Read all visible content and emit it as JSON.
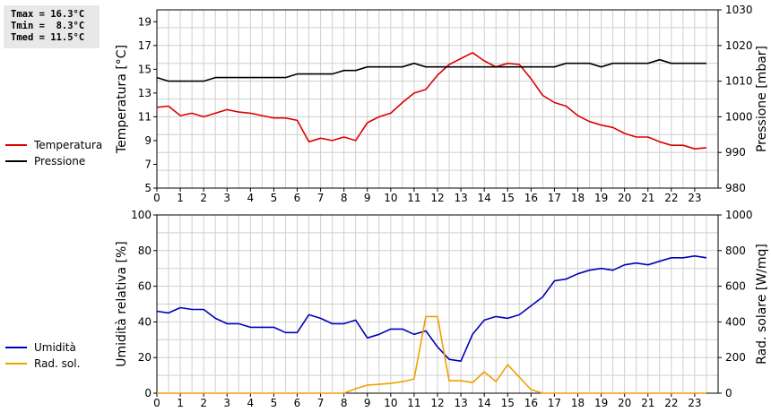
{
  "stats": [
    "Tmax = 16.3°C",
    "Tmin =  8.3°C",
    "Tmed = 11.5°C"
  ],
  "colors": {
    "temperature": "#dd0000",
    "pressure": "#000000",
    "humidity": "#0000bb",
    "radiation": "#f0a000",
    "grid": "#cfcfcf"
  },
  "chart_data": [
    {
      "type": "line",
      "ylabel": "Temperatura [°C]",
      "y2label": "Pressione [mbar]",
      "xlim": [
        0,
        24
      ],
      "xticks": [
        0,
        1,
        2,
        3,
        4,
        5,
        6,
        7,
        8,
        9,
        10,
        11,
        12,
        13,
        14,
        15,
        16,
        17,
        18,
        19,
        20,
        21,
        22,
        23
      ],
      "ylim": [
        5,
        20
      ],
      "yticks": [
        5,
        7,
        9,
        11,
        13,
        15,
        17,
        19
      ],
      "y2lim": [
        980,
        1030
      ],
      "y2ticks": [
        980,
        990,
        1000,
        1010,
        1020,
        1030
      ],
      "grid": true,
      "legend": "left",
      "series": [
        {
          "name": "Temperatura",
          "axis": "left",
          "color": "#dd0000",
          "x": [
            0,
            0.5,
            1,
            1.5,
            2,
            2.5,
            3,
            3.5,
            4,
            4.5,
            5,
            5.5,
            6,
            6.5,
            7,
            7.5,
            8,
            8.5,
            9,
            9.5,
            10,
            10.5,
            11,
            11.5,
            12,
            12.5,
            13,
            13.5,
            14,
            14.5,
            15,
            15.5,
            16,
            16.5,
            17,
            17.5,
            18,
            18.5,
            19,
            19.5,
            20,
            20.5,
            21,
            21.5,
            22,
            22.5,
            23,
            23.5
          ],
          "values": [
            11.8,
            11.9,
            11.1,
            11.3,
            11.0,
            11.3,
            11.6,
            11.4,
            11.3,
            11.1,
            10.9,
            10.9,
            10.7,
            8.9,
            9.2,
            9.0,
            9.3,
            9.0,
            10.5,
            11.0,
            11.3,
            12.2,
            13.0,
            13.3,
            14.5,
            15.4,
            15.9,
            16.4,
            15.7,
            15.2,
            15.5,
            15.4,
            14.2,
            12.8,
            12.2,
            11.9,
            11.1,
            10.6,
            10.3,
            10.1,
            9.6,
            9.3,
            9.3,
            8.9,
            8.6,
            8.6,
            8.3,
            8.4
          ]
        },
        {
          "name": "Pressione",
          "axis": "right",
          "color": "#000000",
          "x": [
            0,
            0.5,
            1,
            1.5,
            2,
            2.5,
            3,
            3.5,
            4,
            4.5,
            5,
            5.5,
            6,
            6.5,
            7,
            7.5,
            8,
            8.5,
            9,
            9.5,
            10,
            10.5,
            11,
            11.5,
            12,
            12.5,
            13,
            13.5,
            14,
            14.5,
            15,
            15.5,
            16,
            16.5,
            17,
            17.5,
            18,
            18.5,
            19,
            19.5,
            20,
            20.5,
            21,
            21.5,
            22,
            22.5,
            23,
            23.5
          ],
          "values": [
            1011,
            1010,
            1010,
            1010,
            1010,
            1011,
            1011,
            1011,
            1011,
            1011,
            1011,
            1011,
            1012,
            1012,
            1012,
            1012,
            1013,
            1013,
            1014,
            1014,
            1014,
            1014,
            1015,
            1014,
            1014,
            1014,
            1014,
            1014,
            1014,
            1014,
            1014,
            1014,
            1014,
            1014,
            1014,
            1015,
            1015,
            1015,
            1014,
            1015,
            1015,
            1015,
            1015,
            1016,
            1015,
            1015,
            1015,
            1015
          ]
        }
      ]
    },
    {
      "type": "line",
      "ylabel": "Umidità relativa [%]",
      "y2label": "Rad. solare [W/mq]",
      "xlim": [
        0,
        24
      ],
      "xticks": [
        0,
        1,
        2,
        3,
        4,
        5,
        6,
        7,
        8,
        9,
        10,
        11,
        12,
        13,
        14,
        15,
        16,
        17,
        18,
        19,
        20,
        21,
        22,
        23
      ],
      "ylim": [
        0,
        100
      ],
      "yticks": [
        0,
        20,
        40,
        60,
        80,
        100
      ],
      "y2lim": [
        0,
        1000
      ],
      "y2ticks": [
        0,
        200,
        400,
        600,
        800,
        1000
      ],
      "grid": true,
      "legend": "left",
      "series": [
        {
          "name": "Umidità",
          "axis": "left",
          "color": "#0000bb",
          "x": [
            0,
            0.5,
            1,
            1.5,
            2,
            2.5,
            3,
            3.5,
            4,
            4.5,
            5,
            5.5,
            6,
            6.5,
            7,
            7.5,
            8,
            8.5,
            9,
            9.5,
            10,
            10.5,
            11,
            11.5,
            12,
            12.5,
            13,
            13.5,
            14,
            14.5,
            15,
            15.5,
            16,
            16.5,
            17,
            17.5,
            18,
            18.5,
            19,
            19.5,
            20,
            20.5,
            21,
            21.5,
            22,
            22.5,
            23,
            23.5
          ],
          "values": [
            46,
            45,
            48,
            47,
            47,
            42,
            39,
            39,
            37,
            37,
            37,
            34,
            34,
            44,
            42,
            39,
            39,
            41,
            31,
            33,
            36,
            36,
            33,
            35,
            26,
            19,
            18,
            33,
            41,
            43,
            42,
            44,
            49,
            54,
            63,
            64,
            67,
            69,
            70,
            69,
            72,
            73,
            72,
            74,
            76,
            76,
            77,
            76
          ]
        },
        {
          "name": "Rad. sol.",
          "axis": "right",
          "color": "#f0a000",
          "x": [
            0,
            0.5,
            1,
            1.5,
            2,
            2.5,
            3,
            3.5,
            4,
            4.5,
            5,
            5.5,
            6,
            6.5,
            7,
            7.5,
            8,
            8.5,
            9,
            9.5,
            10,
            10.5,
            11,
            11.5,
            12,
            12.5,
            13,
            13.5,
            14,
            14.5,
            15,
            15.5,
            16,
            16.5,
            17,
            17.5,
            18,
            18.5,
            19,
            19.5,
            20,
            20.5,
            21,
            21.5,
            22,
            22.5,
            23,
            23.5
          ],
          "values": [
            0,
            0,
            0,
            0,
            0,
            0,
            0,
            0,
            0,
            0,
            0,
            0,
            0,
            0,
            0,
            0,
            0,
            25,
            45,
            50,
            55,
            65,
            80,
            430,
            430,
            70,
            70,
            60,
            120,
            65,
            160,
            90,
            20,
            0,
            0,
            0,
            0,
            0,
            0,
            0,
            0,
            0,
            0,
            0,
            0,
            0,
            0,
            0
          ]
        }
      ]
    }
  ]
}
